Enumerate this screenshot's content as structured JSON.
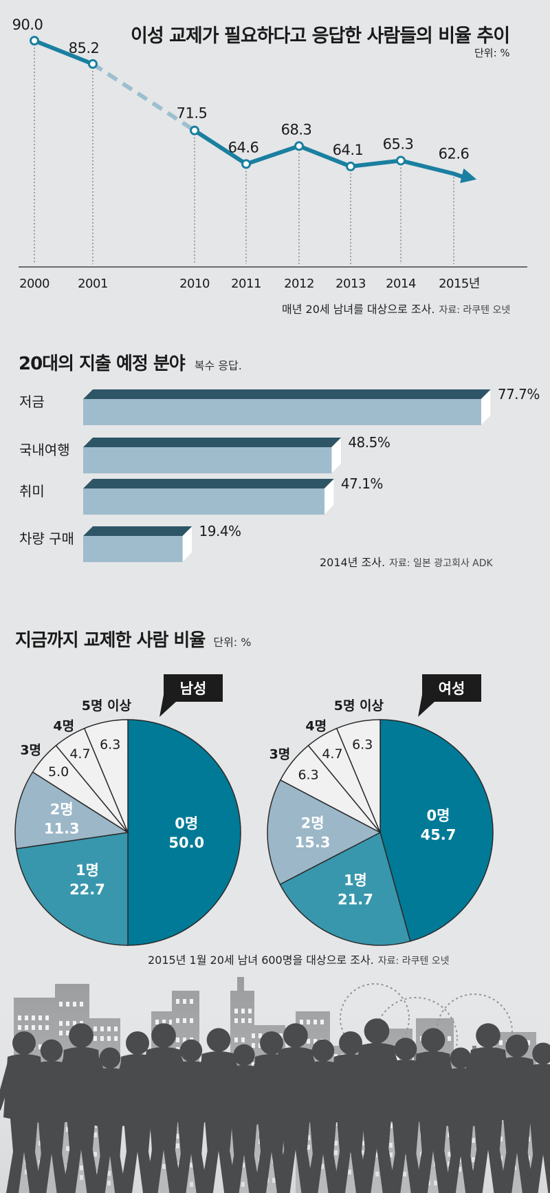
{
  "line_section": {
    "title": "이성 교제가 필요하다고 응답한 사람들의 비율 추이",
    "unit": "단위: %",
    "note": "매년 20세 남녀를 대상으로 조사.",
    "source": "자료: 라쿠텐 오넷"
  },
  "bar_section": {
    "title": "20대의 지출 예정 분야",
    "subtitle": "복수 응답.",
    "note": "2014년 조사.",
    "source": "자료: 일본 광고회사 ADK"
  },
  "pie_section": {
    "title": "지금까지 교제한 사람 비율",
    "unit": "단위: %",
    "note": "2015년 1월 20세 남녀 600명을 대상으로 조사.",
    "source": "자료: 라쿠텐 오넷"
  },
  "chart_data": [
    {
      "type": "line",
      "title": "이성 교제가 필요하다고 응답한 사람들의 비율 추이",
      "x": [
        "2000",
        "2001",
        "2010",
        "2011",
        "2012",
        "2013",
        "2014",
        "2015년"
      ],
      "values": [
        90.0,
        85.2,
        71.5,
        64.6,
        68.3,
        64.1,
        65.3,
        62.6
      ],
      "value_labels": [
        "90.0",
        "85.2",
        "71.5",
        "64.6",
        "68.3",
        "64.1",
        "65.3",
        "62.6"
      ],
      "gap_between": [
        "2001",
        "2010"
      ],
      "ylim": [
        40,
        92
      ],
      "xlabel": "",
      "ylabel": "",
      "grid": false,
      "color": "#1a7fa0",
      "dash_color": "#9cbfcf"
    },
    {
      "type": "bar",
      "orientation": "horizontal",
      "title": "20대의 지출 예정 분야",
      "categories": [
        "저금",
        "국내여행",
        "취미",
        "차량 구매"
      ],
      "values": [
        77.7,
        48.5,
        47.1,
        19.4
      ],
      "value_labels": [
        "77.7%",
        "48.5%",
        "47.1%",
        "19.4%"
      ],
      "xlim": [
        0,
        100
      ],
      "colors": {
        "front": "#9fbccc",
        "top": "#2e5566",
        "side": "#ffffff"
      }
    },
    {
      "type": "pie",
      "badge": "남성",
      "segments": [
        {
          "label": "0명",
          "value": 50.0,
          "value_label": "50.0",
          "color": "#007a96"
        },
        {
          "label": "1명",
          "value": 22.7,
          "value_label": "22.7",
          "color": "#3897ad"
        },
        {
          "label": "2명",
          "value": 11.3,
          "value_label": "11.3",
          "color": "#9bb7c8"
        },
        {
          "label": "3명",
          "value": 5.0,
          "value_label": "5.0",
          "color": "#f1f1f1"
        },
        {
          "label": "4명",
          "value": 4.7,
          "value_label": "4.7",
          "color": "#f1f1f1"
        },
        {
          "label": "5명 이상",
          "value": 6.3,
          "value_label": "6.3",
          "color": "#f1f1f1"
        }
      ]
    },
    {
      "type": "pie",
      "badge": "여성",
      "segments": [
        {
          "label": "0명",
          "value": 45.7,
          "value_label": "45.7",
          "color": "#007a96"
        },
        {
          "label": "1명",
          "value": 21.7,
          "value_label": "21.7",
          "color": "#3897ad"
        },
        {
          "label": "2명",
          "value": 15.3,
          "value_label": "15.3",
          "color": "#9bb7c8"
        },
        {
          "label": "3명",
          "value": 6.3,
          "value_label": "6.3",
          "color": "#f1f1f1"
        },
        {
          "label": "4명",
          "value": 4.7,
          "value_label": "4.7",
          "color": "#f1f1f1"
        },
        {
          "label": "5명 이상",
          "value": 6.3,
          "value_label": "6.3",
          "color": "#f1f1f1"
        }
      ]
    }
  ]
}
